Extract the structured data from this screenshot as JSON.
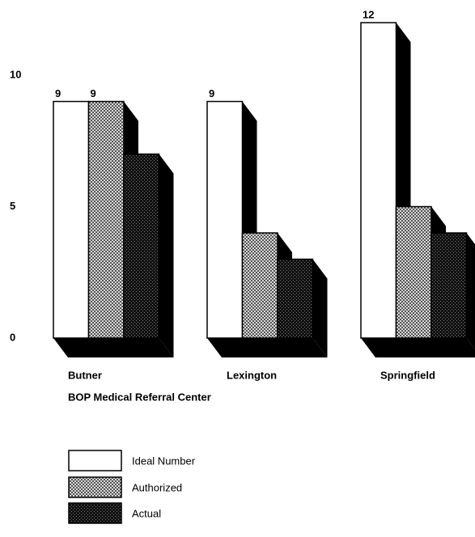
{
  "chart_data": {
    "type": "bar3d",
    "categories": [
      "Butner",
      "Lexington",
      "Springfield"
    ],
    "x_label": "BOP Medical Referral Center",
    "series": [
      {
        "name": "Ideal Number",
        "color": "#ffffff",
        "values": [
          9,
          9,
          12
        ]
      },
      {
        "name": "Authorized",
        "color": "#9a9a9a",
        "values": [
          9,
          4,
          5
        ]
      },
      {
        "name": "Actual",
        "color": "#2a2a2a",
        "values": [
          7,
          3,
          4
        ]
      }
    ],
    "ylim": [
      0,
      12
    ],
    "yticks": [
      0,
      5,
      10
    ]
  }
}
